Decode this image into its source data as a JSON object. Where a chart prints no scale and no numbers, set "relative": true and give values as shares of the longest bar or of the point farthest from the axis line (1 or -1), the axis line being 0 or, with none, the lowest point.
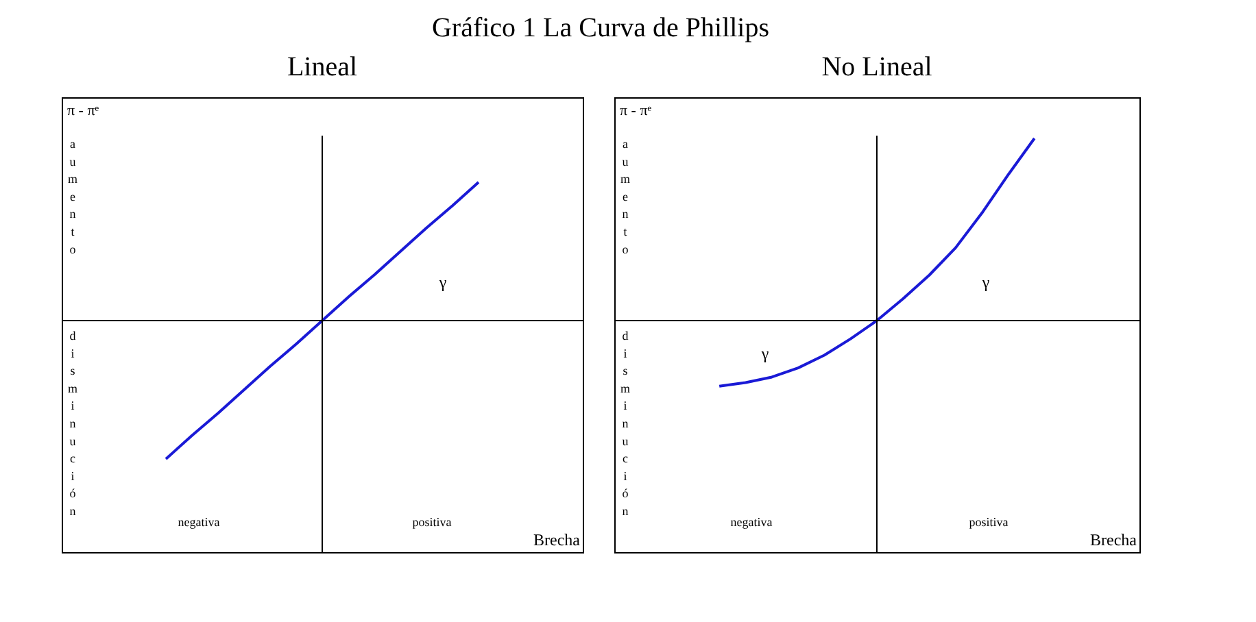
{
  "chart_data": [
    {
      "type": "line",
      "title": "Gráfico 1 La Curva de Phillips",
      "subtitle": "Lineal",
      "xlabel": "Brecha",
      "ylabel": "π - πᵉ",
      "relative": true,
      "grid": false,
      "marker": "none",
      "line_style": "solid",
      "tick_labels": false,
      "annotations": [
        "aumento",
        "disminución",
        "negativa",
        "positiva",
        "γ"
      ],
      "categories": [
        null,
        null,
        null,
        null,
        null,
        null,
        null,
        null,
        null,
        null,
        null,
        null,
        null,
        null,
        null,
        null,
        null,
        null,
        null,
        null,
        null
      ],
      "series": [
        {
          "color": "#1a1ad6",
          "values": [
            null,
            null,
            null,
            null,
            -1,
            -0.83,
            -0.67,
            -0.5,
            -0.33,
            -0.17,
            0,
            0.17,
            0.33,
            0.5,
            0.67,
            0.83,
            1,
            null,
            null,
            null,
            null
          ]
        }
      ]
    },
    {
      "type": "line",
      "subtitle": "No Lineal",
      "xlabel": "Brecha",
      "ylabel": "π - πᵉ",
      "relative": true,
      "grid": false,
      "marker": "none",
      "line_style": "solid",
      "tick_labels": false,
      "annotations": [
        "aumento",
        "disminución",
        "negativa",
        "positiva",
        "γ",
        "γ"
      ],
      "categories": [
        null,
        null,
        null,
        null,
        null,
        null,
        null,
        null,
        null,
        null,
        null,
        null,
        null,
        null,
        null,
        null,
        null,
        null,
        null,
        null,
        null
      ],
      "series": [
        {
          "color": "#1a1ad6",
          "values": [
            null,
            null,
            null,
            null,
            -0.36,
            -0.34,
            -0.31,
            -0.26,
            -0.19,
            -0.1,
            0,
            0.12,
            0.25,
            0.4,
            0.59,
            0.8,
            1,
            null,
            null,
            null,
            null
          ]
        }
      ]
    }
  ]
}
